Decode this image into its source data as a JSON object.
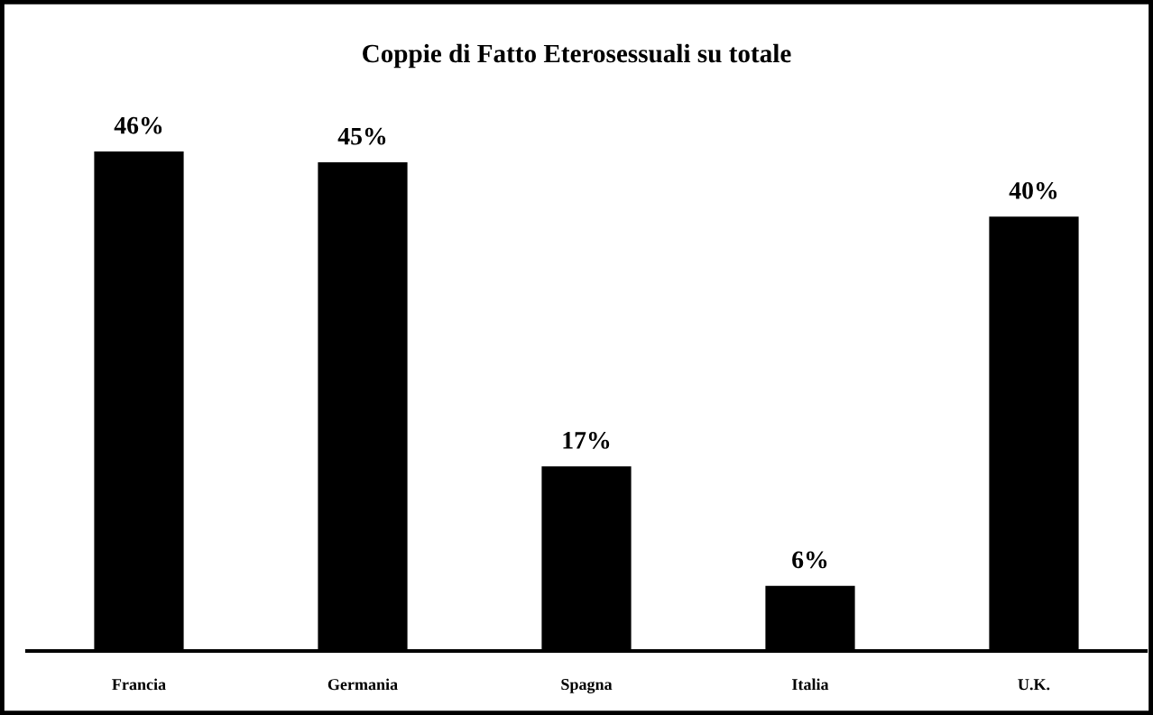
{
  "chart_data": {
    "type": "bar",
    "title": "Coppie di Fatto Eterosessuali su totale",
    "categories": [
      "Francia",
      "Germania",
      "Spagna",
      "Italia",
      "U.K."
    ],
    "values": [
      46,
      45,
      17,
      6,
      40
    ],
    "value_labels": [
      "46%",
      "45%",
      "17%",
      "6%",
      "40%"
    ],
    "color": "#000000",
    "grid": false,
    "legend": false
  }
}
